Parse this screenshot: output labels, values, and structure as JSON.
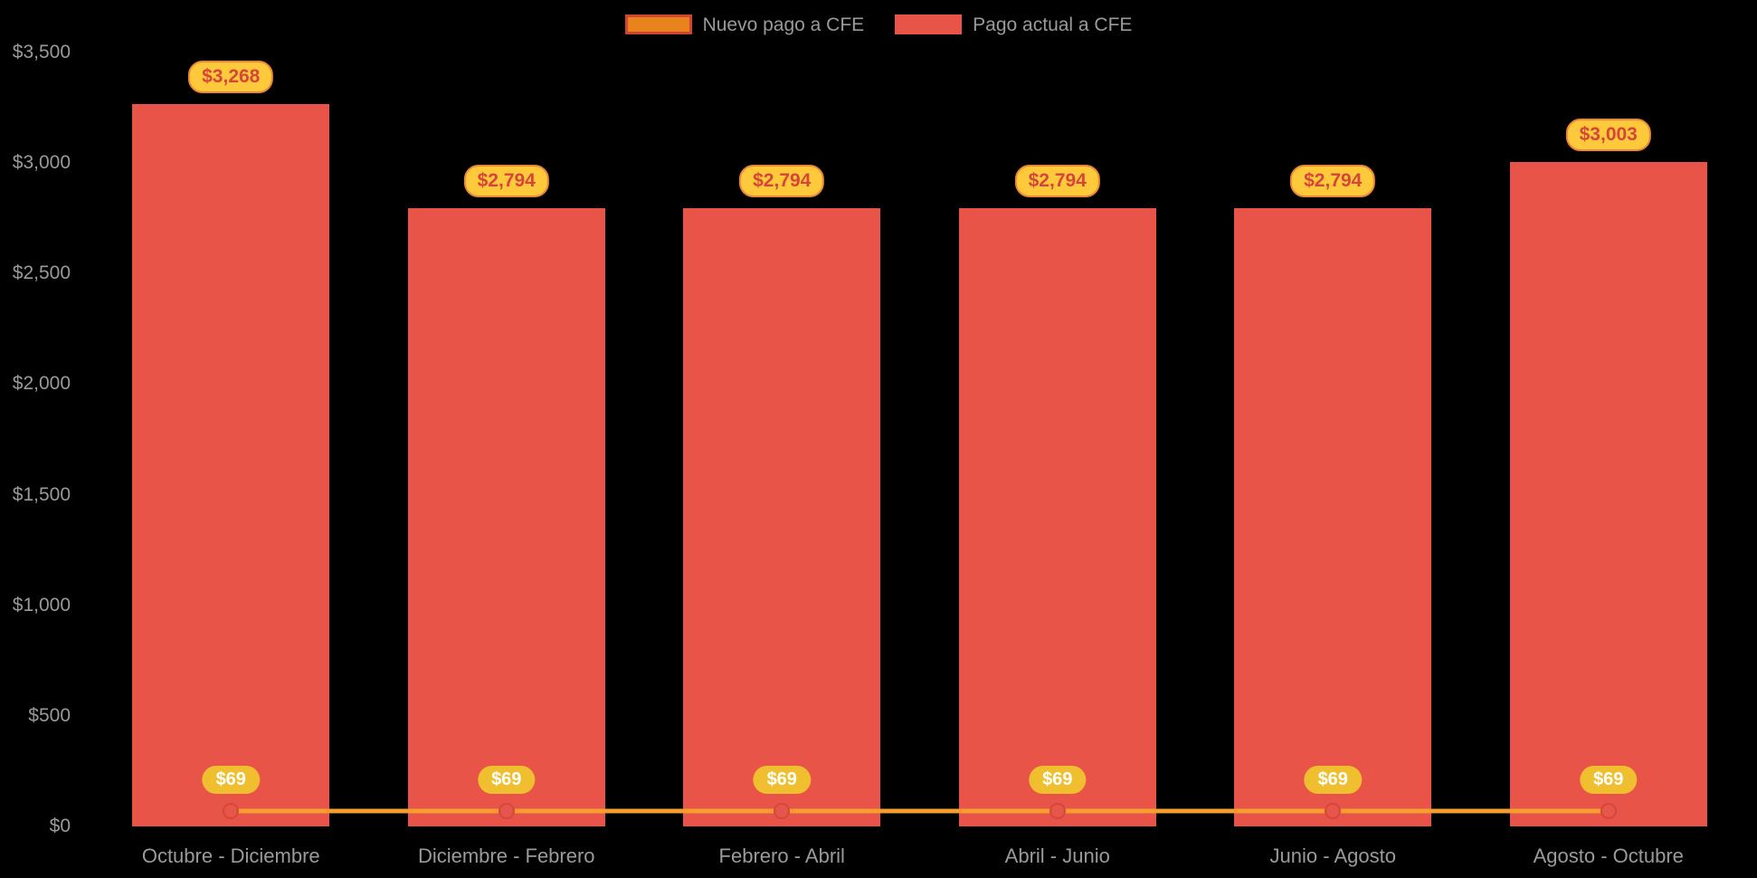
{
  "chart_data": {
    "type": "bar",
    "categories": [
      "Octubre - Diciembre",
      "Diciembre - Febrero",
      "Febrero - Abril",
      "Abril - Junio",
      "Junio - Agosto",
      "Agosto - Octubre"
    ],
    "series": [
      {
        "name": "Nuevo pago a CFE",
        "render": "line",
        "values": [
          69,
          69,
          69,
          69,
          69,
          69
        ],
        "labels": [
          "$69",
          "$69",
          "$69",
          "$69",
          "$69",
          "$69"
        ],
        "color": "#F59E2D"
      },
      {
        "name": "Pago actual a CFE",
        "render": "bar",
        "values": [
          3268,
          2794,
          2794,
          2794,
          2794,
          3003
        ],
        "labels": [
          "$3,268",
          "$2,794",
          "$2,794",
          "$2,794",
          "$2,794",
          "$3,003"
        ],
        "color": "#E85548"
      }
    ],
    "title": "",
    "xlabel": "",
    "ylabel": "",
    "ylim": [
      0,
      3500
    ],
    "yticks": [
      "$0",
      "$500",
      "$1,000",
      "$1,500",
      "$2,000",
      "$2,500",
      "$3,000",
      "$3,500"
    ],
    "ytick_values": [
      0,
      500,
      1000,
      1500,
      2000,
      2500,
      3000,
      3500
    ],
    "grid": false,
    "legend_position": "top-center"
  },
  "legend": {
    "items": [
      {
        "label": "Nuevo pago a CFE",
        "swatch_fill": "#E8831D",
        "swatch_border": "#D0452F"
      },
      {
        "label": "Pago actual a CFE",
        "swatch_fill": "#E85548",
        "swatch_border": "#E85548"
      }
    ]
  },
  "colors": {
    "background": "#000000",
    "bar": "#E85548",
    "line": "#F59E2D",
    "point_fill": "#E8564B",
    "point_border": "#D2473E",
    "bar_pill_bg": "#FFC93C",
    "bar_pill_border": "#ED8733",
    "bar_pill_text": "#D6453A",
    "line_pill_bg": "#EFBF2F",
    "line_pill_text": "#FFFFFF",
    "axis_text": "#9A9A9A",
    "legend_text": "#9A9A9A"
  }
}
